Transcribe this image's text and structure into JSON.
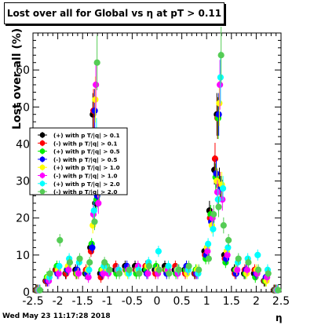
{
  "title": "Lost over all for Global vs   η at pT > 0.11",
  "footer": {
    "date": "Wed May 23 11:17:28 2018"
  },
  "chart_data": {
    "type": "scatter",
    "xlabel": "η",
    "ylabel": "Lost over all (%)",
    "xlim": [
      -2.5,
      2.5
    ],
    "ylim": [
      0,
      70
    ],
    "xticks": [
      "-2.5",
      "-2",
      "-1.5",
      "-1",
      "-0.5",
      "0",
      "0.5",
      "1",
      "1.5",
      "2",
      "2.5"
    ],
    "yticks": [
      "0",
      "10",
      "20",
      "30",
      "40",
      "50",
      "60"
    ],
    "x_tick_values": [
      -2.5,
      -2,
      -1.5,
      -1,
      -0.5,
      0,
      0.5,
      1,
      1.5,
      2,
      2.5
    ],
    "y_tick_values": [
      0,
      10,
      20,
      30,
      40,
      50,
      60
    ],
    "legend_position": "middle-left",
    "series": [
      {
        "name": "(+) with p T/|q| > 0.1",
        "color": "#000000",
        "marker": "circle",
        "x": [
          -2.4,
          -2.2,
          -2.0,
          -1.8,
          -1.6,
          -1.4,
          -1.3,
          -1.25,
          -1.2,
          -1.1,
          -1.0,
          -0.8,
          -0.6,
          -0.4,
          -0.2,
          0.0,
          0.2,
          0.4,
          0.6,
          0.8,
          1.0,
          1.1,
          1.2,
          1.25,
          1.3,
          1.4,
          1.6,
          1.8,
          2.0,
          2.2,
          2.4
        ],
        "y": [
          0.5,
          3,
          6,
          5,
          6,
          5,
          12,
          48,
          24,
          5,
          7,
          6,
          7,
          7,
          6,
          6,
          7,
          6,
          6,
          5,
          11,
          22,
          33,
          48,
          30,
          10,
          6,
          5,
          5,
          3,
          0.5
        ]
      },
      {
        "name": "(-) with p T/|q| > 0.1",
        "color": "#ff0000",
        "marker": "circle",
        "x": [
          -2.4,
          -2.2,
          -2.0,
          -1.8,
          -1.6,
          -1.4,
          -1.3,
          -1.25,
          -1.2,
          -1.1,
          -1.0,
          -0.8,
          -0.6,
          -0.4,
          -0.2,
          0.0,
          0.2,
          0.4,
          0.6,
          0.8,
          1.0,
          1.1,
          1.2,
          1.25,
          1.3,
          1.4,
          1.6,
          1.8,
          2.0,
          2.2,
          2.4
        ],
        "y": [
          0.5,
          3,
          6,
          5,
          5,
          6,
          11,
          49,
          27,
          4,
          6,
          7,
          6,
          6,
          7,
          5,
          6,
          7,
          5,
          5,
          10,
          20,
          36,
          47,
          29,
          9,
          5,
          6,
          6,
          3,
          0.5
        ]
      },
      {
        "name": "(+) with p T/|q| > 0.5",
        "color": "#00ee00",
        "marker": "circle",
        "x": [
          -2.4,
          -2.2,
          -2.0,
          -1.8,
          -1.6,
          -1.4,
          -1.3,
          -1.25,
          -1.2,
          -1.1,
          -1.0,
          -0.8,
          -0.6,
          -0.4,
          -0.2,
          0.0,
          0.2,
          0.4,
          0.6,
          0.8,
          1.0,
          1.1,
          1.2,
          1.25,
          1.3,
          1.4,
          1.6,
          1.8,
          2.0,
          2.2,
          2.4
        ],
        "y": [
          0.5,
          4,
          7,
          6,
          5,
          5,
          13,
          37,
          25,
          6,
          7,
          5,
          6,
          5,
          6,
          7,
          6,
          5,
          6,
          6,
          9,
          21,
          31,
          47,
          28,
          8,
          6,
          5,
          4,
          3,
          0.5
        ]
      },
      {
        "name": "(-) with p T/|q| > 0.5",
        "color": "#0000ff",
        "marker": "circle",
        "x": [
          -2.4,
          -2.2,
          -2.0,
          -1.8,
          -1.6,
          -1.4,
          -1.3,
          -1.25,
          -1.2,
          -1.1,
          -1.0,
          -0.8,
          -0.6,
          -0.4,
          -0.2,
          0.0,
          0.2,
          0.4,
          0.6,
          0.8,
          1.0,
          1.1,
          1.2,
          1.25,
          1.3,
          1.4,
          1.6,
          1.8,
          2.0,
          2.2,
          2.4
        ],
        "y": [
          0.5,
          3,
          5,
          6,
          6,
          5,
          12,
          49,
          26,
          5,
          6,
          6,
          7,
          6,
          5,
          6,
          5,
          6,
          7,
          5,
          10,
          19,
          32,
          48,
          28,
          9,
          5,
          6,
          5,
          4,
          0.5
        ]
      },
      {
        "name": "(+) with p T/|q| > 1.0",
        "color": "#ffff00",
        "marker": "circle",
        "x": [
          -2.4,
          -2.2,
          -2.0,
          -1.8,
          -1.6,
          -1.4,
          -1.3,
          -1.25,
          -1.2,
          -1.1,
          -1.0,
          -0.8,
          -0.6,
          -0.4,
          -0.2,
          0.0,
          0.2,
          0.4,
          0.6,
          0.8,
          1.0,
          1.1,
          1.2,
          1.25,
          1.3,
          1.4,
          1.6,
          1.8,
          2.0,
          2.2,
          2.4
        ],
        "y": [
          0.5,
          4,
          6,
          7,
          5,
          6,
          18,
          52,
          29,
          6,
          6,
          6,
          5,
          6,
          7,
          6,
          6,
          6,
          5,
          6,
          12,
          18,
          30,
          51,
          29,
          11,
          6,
          5,
          6,
          3,
          0.5
        ]
      },
      {
        "name": "(-) with p T/|q| > 1.0",
        "color": "#ff00ff",
        "marker": "circle",
        "x": [
          -2.4,
          -2.2,
          -2.0,
          -1.8,
          -1.6,
          -1.4,
          -1.3,
          -1.25,
          -1.2,
          -1.1,
          -1.0,
          -0.8,
          -0.6,
          -0.4,
          -0.2,
          0.0,
          0.2,
          0.4,
          0.6,
          0.8,
          1.0,
          1.1,
          1.2,
          1.25,
          1.3,
          1.4,
          1.6,
          1.8,
          2.0,
          2.2,
          2.4
        ],
        "y": [
          0.5,
          3,
          5,
          6,
          5,
          4,
          21,
          56,
          24,
          5,
          5,
          6,
          6,
          7,
          5,
          5,
          6,
          5,
          6,
          5,
          11,
          20,
          27,
          56,
          25,
          10,
          6,
          6,
          5,
          4,
          0.5
        ]
      },
      {
        "name": "(+) with p T/|q| > 2.0",
        "color": "#00ffff",
        "marker": "circle",
        "x": [
          -2.4,
          -2.2,
          -2.0,
          -1.8,
          -1.6,
          -1.4,
          -1.3,
          -1.25,
          -1.2,
          -1.1,
          -1.0,
          -0.8,
          -0.6,
          -0.4,
          -0.2,
          0.0,
          0.2,
          0.4,
          0.6,
          0.8,
          1.0,
          1.1,
          1.2,
          1.25,
          1.3,
          1.4,
          1.6,
          1.8,
          2.0,
          2.2,
          2.4
        ],
        "y": [
          0.5,
          4,
          7,
          9,
          8,
          6,
          22,
          42,
          33,
          7,
          6,
          6,
          5,
          6,
          8,
          11,
          7,
          6,
          6,
          5,
          13,
          17,
          25,
          58,
          28,
          12,
          8,
          9,
          10,
          6,
          0.5
        ]
      },
      {
        "name": "(-) with p T/|q| > 2.0",
        "color": "#55cc55",
        "marker": "circle",
        "x": [
          -2.4,
          -2.2,
          -2.0,
          -1.8,
          -1.6,
          -1.4,
          -1.3,
          -1.25,
          -1.2,
          -1.1,
          -1.0,
          -0.8,
          -0.6,
          -0.4,
          -0.2,
          0.0,
          0.2,
          0.4,
          0.6,
          0.8,
          1.0,
          1.1,
          1.2,
          1.25,
          1.3,
          1.4,
          1.6,
          1.8,
          2.0,
          2.2,
          2.4
        ],
        "y": [
          0.5,
          5,
          14,
          8,
          9,
          8,
          19,
          62,
          29,
          8,
          6,
          5,
          6,
          5,
          7,
          6,
          5,
          6,
          7,
          6,
          9,
          21,
          23,
          64,
          18,
          14,
          9,
          8,
          6,
          5,
          0.5
        ]
      }
    ]
  }
}
